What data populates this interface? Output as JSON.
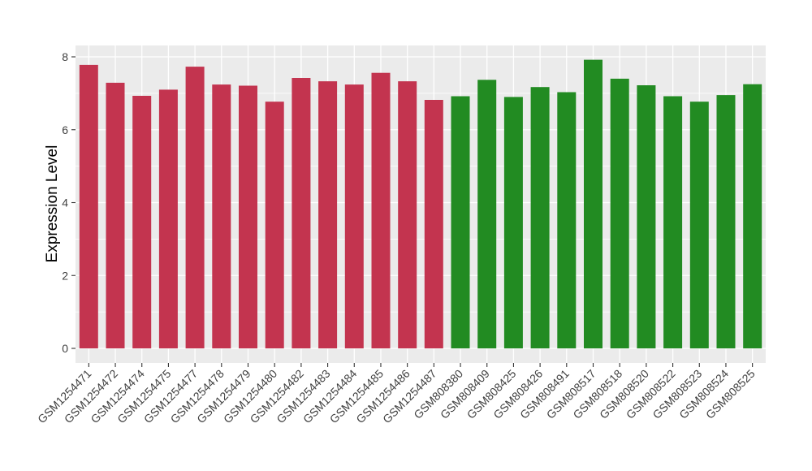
{
  "chart_data": {
    "type": "bar",
    "title": "",
    "xlabel": "",
    "ylabel": "Expression Level",
    "ylim": [
      0,
      8.3
    ],
    "yticks": [
      0,
      2,
      4,
      6,
      8
    ],
    "yticks_minor": [
      1,
      3,
      5,
      7
    ],
    "grid": true,
    "legend_position": "none",
    "panel_background": "#EBEBEB",
    "gridline_color": "#FFFFFF",
    "axis_text_color": "#404040",
    "tick_mark_color": "#333333",
    "palette": {
      "red_group": "#C3344F",
      "green_group": "#228B22"
    },
    "categories": [
      "GSM1254471",
      "GSM1254472",
      "GSM1254474",
      "GSM1254475",
      "GSM1254477",
      "GSM1254478",
      "GSM1254479",
      "GSM1254480",
      "GSM1254482",
      "GSM1254483",
      "GSM1254484",
      "GSM1254485",
      "GSM1254486",
      "GSM1254487",
      "GSM808380",
      "GSM808409",
      "GSM808425",
      "GSM808426",
      "GSM808491",
      "GSM808517",
      "GSM808518",
      "GSM808520",
      "GSM808522",
      "GSM808523",
      "GSM808524",
      "GSM808525"
    ],
    "values": [
      7.78,
      7.29,
      6.93,
      7.1,
      7.73,
      7.24,
      7.21,
      6.77,
      7.42,
      7.33,
      7.24,
      7.56,
      7.33,
      6.82,
      6.92,
      7.37,
      6.9,
      7.17,
      7.03,
      7.92,
      7.4,
      7.22,
      6.92,
      6.77,
      6.95,
      7.25
    ],
    "colors": [
      "#C3344F",
      "#C3344F",
      "#C3344F",
      "#C3344F",
      "#C3344F",
      "#C3344F",
      "#C3344F",
      "#C3344F",
      "#C3344F",
      "#C3344F",
      "#C3344F",
      "#C3344F",
      "#C3344F",
      "#C3344F",
      "#228B22",
      "#228B22",
      "#228B22",
      "#228B22",
      "#228B22",
      "#228B22",
      "#228B22",
      "#228B22",
      "#228B22",
      "#228B22",
      "#228B22",
      "#228B22"
    ]
  }
}
